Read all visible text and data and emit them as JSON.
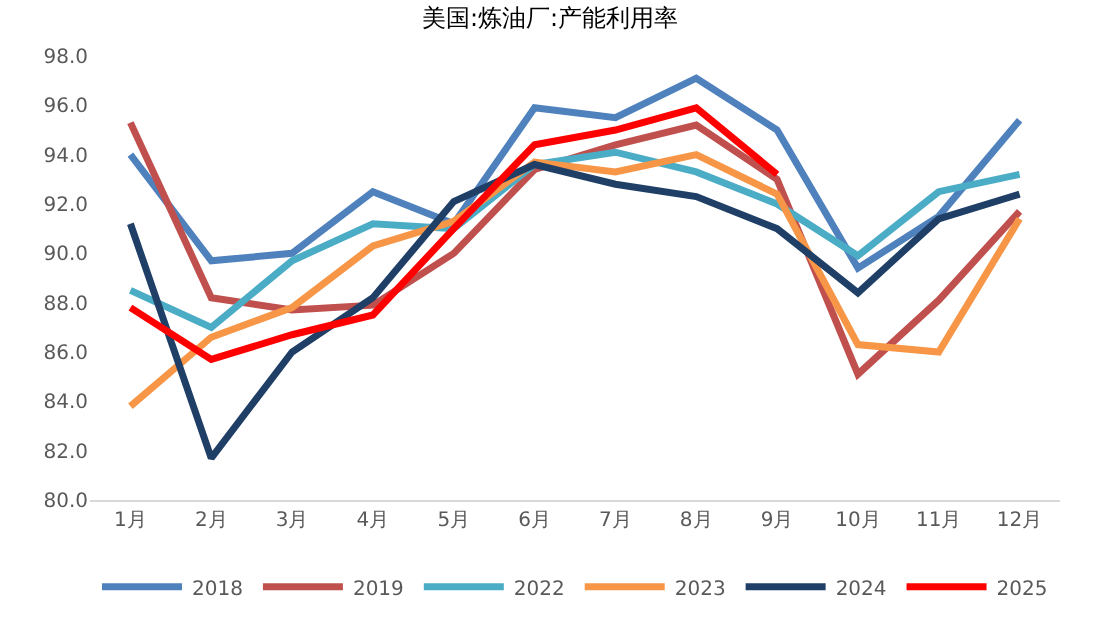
{
  "chart_data": {
    "type": "line",
    "title": "美国:炼油厂:产能利用率",
    "categories": [
      "1月",
      "2月",
      "3月",
      "4月",
      "5月",
      "6月",
      "7月",
      "8月",
      "9月",
      "10月",
      "11月",
      "12月"
    ],
    "ylim": [
      80,
      98
    ],
    "yticks": [
      {
        "value": 80,
        "label": "80.0"
      },
      {
        "value": 82,
        "label": "82.0"
      },
      {
        "value": 84,
        "label": "84.0"
      },
      {
        "value": 86,
        "label": "86.0"
      },
      {
        "value": 88,
        "label": "88.0"
      },
      {
        "value": 90,
        "label": "90.0"
      },
      {
        "value": 92,
        "label": "92.0"
      },
      {
        "value": 94,
        "label": "94.0"
      },
      {
        "value": 96,
        "label": "96.0"
      },
      {
        "value": 98,
        "label": "98.0"
      }
    ],
    "legend": "bottom",
    "marker": "none",
    "line_style": "solid",
    "series": [
      {
        "name": "2018",
        "color": "#4f81bd",
        "values": [
          94.0,
          89.7,
          90.0,
          92.5,
          91.2,
          95.9,
          95.5,
          97.1,
          95.0,
          89.4,
          91.5,
          95.4
        ]
      },
      {
        "name": "2019",
        "color": "#c0504d",
        "values": [
          95.3,
          88.2,
          87.7,
          87.9,
          90.0,
          93.4,
          94.4,
          95.2,
          93.0,
          85.1,
          88.1,
          91.7
        ]
      },
      {
        "name": "2022",
        "color": "#4bacc6",
        "values": [
          88.5,
          87.0,
          89.7,
          91.2,
          91.0,
          93.6,
          94.1,
          93.3,
          92.0,
          89.9,
          92.5,
          93.2
        ]
      },
      {
        "name": "2023",
        "color": "#f79646",
        "values": [
          83.8,
          86.6,
          87.8,
          90.3,
          91.3,
          93.7,
          93.3,
          94.0,
          92.4,
          86.3,
          86.0,
          91.4
        ]
      },
      {
        "name": "2024",
        "color": "#1f3f66",
        "values": [
          91.2,
          81.7,
          86.0,
          88.2,
          92.1,
          93.6,
          92.8,
          92.3,
          91.0,
          88.4,
          91.4,
          92.4
        ]
      },
      {
        "name": "2025",
        "color": "#ff0000",
        "values": [
          87.8,
          85.7,
          86.7,
          87.5,
          91.0,
          94.4,
          95.0,
          95.9,
          93.2,
          null,
          null,
          null
        ]
      }
    ]
  }
}
